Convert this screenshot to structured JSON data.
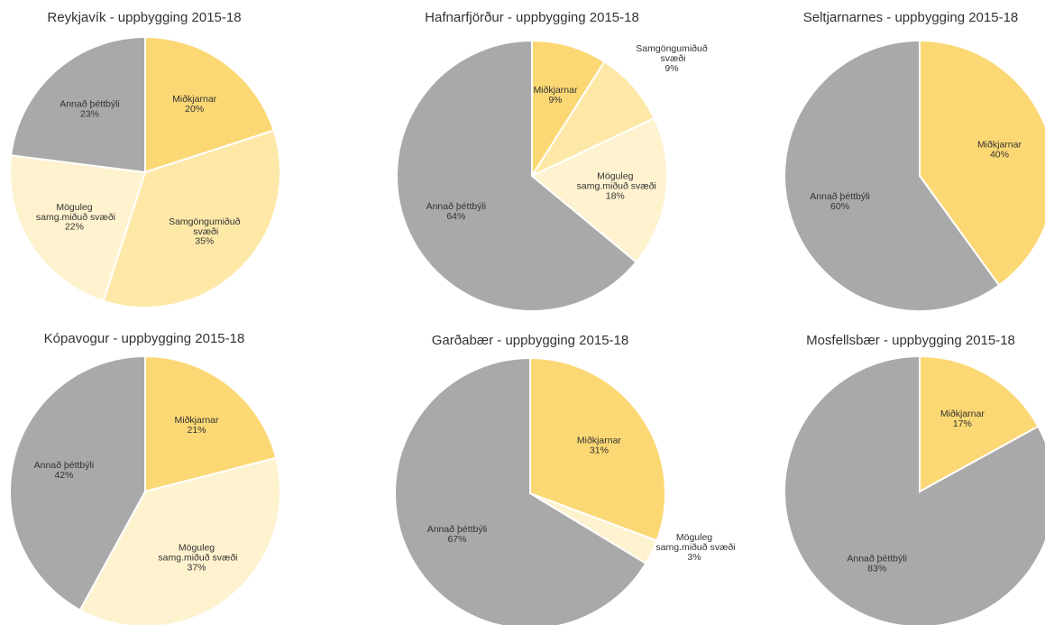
{
  "chart_data": [
    {
      "type": "pie",
      "title": "Reykjavík - uppbygging 2015-18",
      "categories": [
        "Miðkjarnar",
        "Samgöngumiðuð svæði",
        "Möguleg samg.miðuð svæði",
        "Annað þéttbýli"
      ],
      "values": [
        20,
        35,
        22,
        23
      ],
      "value_labels": [
        "20%",
        "35%",
        "22%",
        "23%"
      ],
      "colors": [
        "#fcd874",
        "#fde8a8",
        "#fef2cf",
        "#a9a9a9"
      ]
    },
    {
      "type": "pie",
      "title": "Hafnarfjörður - uppbygging 2015-18",
      "categories": [
        "Miðkjarnar",
        "Samgöngumiðuð svæði",
        "Möguleg samg.miðuð svæði",
        "Annað þéttbýli"
      ],
      "values": [
        9,
        9,
        18,
        64
      ],
      "value_labels": [
        "9%",
        "9%",
        "18%",
        "64%"
      ],
      "colors": [
        "#fcd874",
        "#fde8a8",
        "#fef2cf",
        "#a9a9a9"
      ]
    },
    {
      "type": "pie",
      "title": "Seltjarnarnes - uppbygging 2015-18",
      "categories": [
        "Miðkjarnar",
        "Annað þéttbýli"
      ],
      "values": [
        40,
        60
      ],
      "value_labels": [
        "40%",
        "60%"
      ],
      "colors": [
        "#fcd874",
        "#a9a9a9"
      ]
    },
    {
      "type": "pie",
      "title": "Kópavogur - uppbygging 2015-18",
      "categories": [
        "Miðkjarnar",
        "Möguleg samg.miðuð svæði",
        "Annað þéttbýli"
      ],
      "values": [
        21,
        37,
        42
      ],
      "value_labels": [
        "21%",
        "37%",
        "42%"
      ],
      "colors": [
        "#fcd874",
        "#fef2cf",
        "#a9a9a9"
      ]
    },
    {
      "type": "pie",
      "title": "Garðabær - uppbygging 2015-18",
      "categories": [
        "Miðkjarnar",
        "Möguleg samg.miðuð svæði",
        "Annað þéttbýli"
      ],
      "values": [
        31,
        3,
        67
      ],
      "value_labels": [
        "31%",
        "3%",
        "67%"
      ],
      "colors": [
        "#fcd874",
        "#fef2cf",
        "#a9a9a9"
      ]
    },
    {
      "type": "pie",
      "title": "Mosfellsbær - uppbygging 2015-18",
      "categories": [
        "Miðkjarnar",
        "Annað þéttbýli"
      ],
      "values": [
        17,
        83
      ],
      "value_labels": [
        "17%",
        "83%"
      ],
      "colors": [
        "#fcd874",
        "#a9a9a9"
      ]
    }
  ]
}
